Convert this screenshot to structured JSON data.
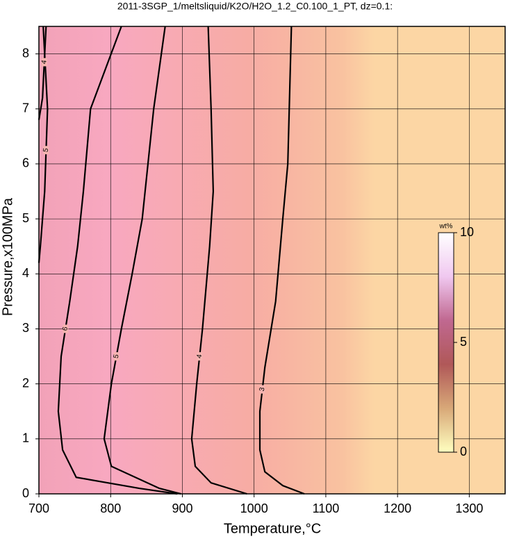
{
  "chart_data": {
    "type": "contour",
    "title": "2011-3SGP_1/meltsliquid/K2O/H2O_1.2_C0.100_1_PT, dz=0.1:",
    "x_label": "Temperature,°C",
    "y_label": "Pressure,x100MPa",
    "xlim": [
      700,
      1350
    ],
    "ylim": [
      0,
      8.5
    ],
    "xticks": [
      700,
      800,
      900,
      1000,
      1100,
      1200,
      1300
    ],
    "yticks": [
      0,
      1,
      2,
      3,
      4,
      5,
      6,
      7,
      8
    ],
    "grid": true,
    "series": [
      {
        "name": "3",
        "color": "#000000",
        "x": [
          1052,
          1047,
          1040,
          1030,
          1015,
          1008,
          1008,
          1015,
          1040,
          1070
        ],
        "y": [
          8.5,
          6,
          5,
          3.5,
          2.3,
          1.5,
          0.8,
          0.4,
          0.15,
          0
        ]
      },
      {
        "name": "4",
        "color": "#000000",
        "x": [
          936,
          940,
          943,
          938,
          928,
          920,
          913,
          918,
          940,
          990
        ],
        "y": [
          8.5,
          7,
          5.5,
          4.5,
          3,
          2,
          1,
          0.5,
          0.2,
          0
        ]
      },
      {
        "name": "5",
        "color": "#000000",
        "x": [
          876,
          860,
          844,
          830,
          815,
          801,
          791,
          801,
          868,
          898
        ],
        "y": [
          8.5,
          7,
          5,
          4,
          3,
          2,
          1,
          0.5,
          0.1,
          0
        ]
      },
      {
        "name": "6",
        "color": "#000000",
        "x": [
          815,
          772,
          762,
          754,
          743,
          731,
          727,
          733,
          752,
          840,
          893
        ],
        "y": [
          8.5,
          7,
          5.5,
          4.5,
          3.5,
          2.5,
          1.5,
          0.8,
          0.3,
          0.1,
          0
        ]
      },
      {
        "name": "5",
        "color": "#000000",
        "x": [
          706,
          712,
          708,
          702,
          700
        ],
        "y": [
          8.5,
          7,
          5.5,
          4.5,
          4.2
        ]
      },
      {
        "name": "4",
        "color": "#000000",
        "x": [
          710,
          705,
          700
        ],
        "y": [
          8.5,
          7.2,
          6.8
        ]
      }
    ],
    "colorbar": {
      "label": "wt%",
      "lim": [
        0,
        10
      ],
      "ticks": [
        0,
        5,
        10
      ],
      "colors": [
        "#ffffc0",
        "#d8a878",
        "#b05858",
        "#c06890",
        "#f0c8f0",
        "#ffffff"
      ]
    }
  }
}
